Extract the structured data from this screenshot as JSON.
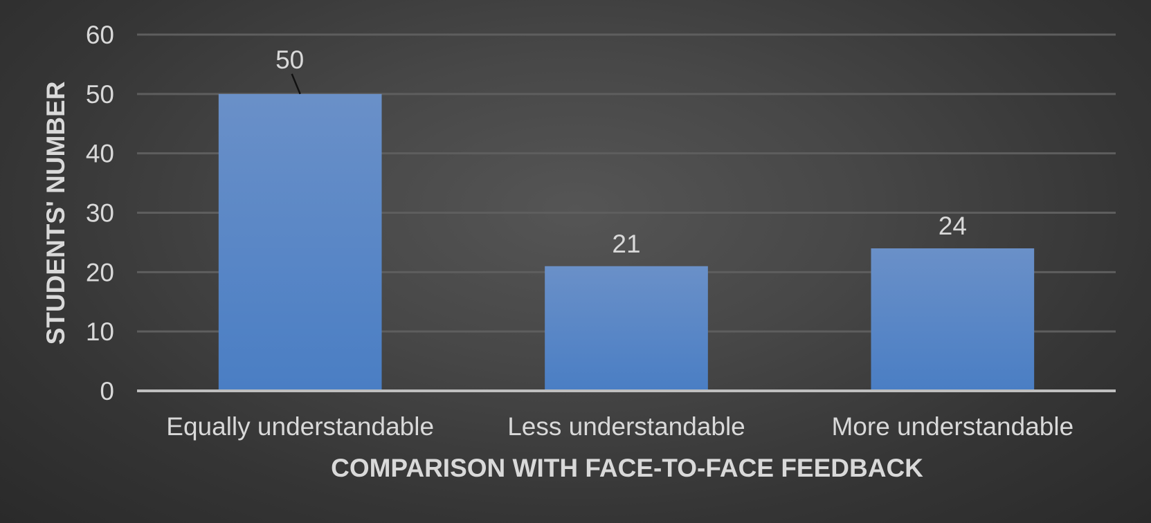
{
  "chart_data": {
    "type": "bar",
    "categories": [
      "Equally understandable",
      "Less understandable",
      "More understandable"
    ],
    "values": [
      50,
      21,
      24
    ],
    "data_labels": [
      "50",
      "21",
      "24"
    ],
    "title": "",
    "xlabel": "COMPARISON WITH FACE-TO-FACE FEEDBACK",
    "ylabel": "STUDENTS' NUMBER",
    "ylim": [
      0,
      60
    ],
    "yticks": [
      "0",
      "10",
      "20",
      "30",
      "40",
      "50",
      "60"
    ],
    "grid": true,
    "legend": "none",
    "colors": {
      "bar": "#4a7ec4",
      "bar_top": "#6a90c8",
      "grid": "#5e5e5e",
      "axis": "#bfbfbf",
      "text": "#d9d9d9"
    }
  }
}
